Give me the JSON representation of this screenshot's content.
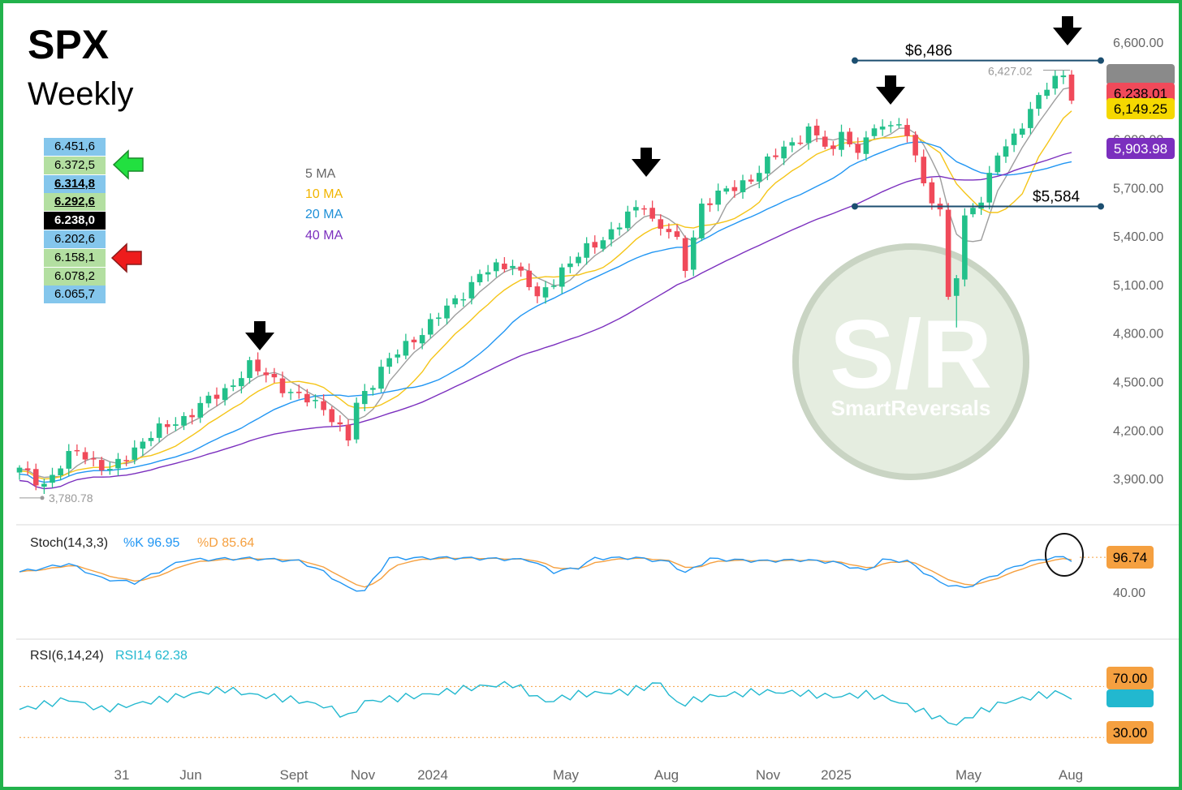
{
  "header": {
    "title": "SPX",
    "subtitle": "Weekly"
  },
  "levels": [
    {
      "label": "6.451,6",
      "color": "#84c6ec",
      "bold": false,
      "underline": false
    },
    {
      "label": "6.372,5",
      "color": "#b3dfa1",
      "bold": false,
      "underline": false
    },
    {
      "label": "6.314,8",
      "color": "#84c6ec",
      "bold": true,
      "underline": true
    },
    {
      "label": "6.292,6",
      "color": "#b3dfa1",
      "bold": true,
      "underline": true
    },
    {
      "label": "6.238,0",
      "color": "#000000",
      "bold": true,
      "underline": false
    },
    {
      "label": "6.202,6",
      "color": "#84c6ec",
      "bold": false,
      "underline": false
    },
    {
      "label": "6.158,1",
      "color": "#b3dfa1",
      "bold": false,
      "underline": false
    },
    {
      "label": "6.078,2",
      "color": "#b3dfa1",
      "bold": false,
      "underline": false
    },
    {
      "label": "6.065,7",
      "color": "#84c6ec",
      "bold": false,
      "underline": false
    }
  ],
  "legend": {
    "ma5": "5 MA",
    "ma10": "10 MA",
    "ma20": "20 MA",
    "ma40": "40 MA",
    "colors": {
      "ma5": "#9e9e9e",
      "ma10": "#f5c518",
      "ma20": "#2196f3",
      "ma40": "#7b2fbe"
    }
  },
  "annotations": {
    "resistance": "$6,486",
    "support": "$5,584",
    "high": "6,427.02",
    "low": "3,780.78",
    "watermark_main": "S/R",
    "watermark_sub": "SmartReversals"
  },
  "price_badges": [
    {
      "label": "",
      "value": 6427.02,
      "bg": "#8a8a8a",
      "fg": "#ffffff"
    },
    {
      "label": "6,238.01",
      "value": 6238.01,
      "bg": "#f04a5a",
      "fg": "#000000"
    },
    {
      "label": "6,149.25",
      "value": 6149.25,
      "bg": "#f5d800",
      "fg": "#000000"
    },
    {
      "label": "5,903.98",
      "value": 5903.98,
      "bg": "#7b2fbe",
      "fg": "#ffffff"
    }
  ],
  "stoch": {
    "title": "Stoch(14,3,3)",
    "k_label": "%K 96.95",
    "d_label": "%D 85.64",
    "badge": "96.74",
    "tick": "40.00"
  },
  "rsi": {
    "title": "RSI(6,14,24)",
    "rsi_label": "RSI14 62.38",
    "badge_high": "70.00",
    "badge_low": "30.00"
  },
  "chart_data": {
    "type": "candlestick",
    "title": "SPX",
    "subtitle": "Weekly",
    "y_ticks": [
      6600,
      6300,
      6000,
      5700,
      5400,
      5100,
      4800,
      4500,
      4200,
      3900
    ],
    "y_tick_labels": [
      "6,600.00",
      "",
      "6,000.00",
      "5,700.00",
      "5,400.00",
      "5,100.00",
      "4,800.00",
      "4,500.00",
      "4,200.00",
      "3,900.00"
    ],
    "ylim": [
      3700,
      6660
    ],
    "x_labels": [
      "31",
      "Jun",
      "Sept",
      "Nov",
      "2024",
      "May",
      "Aug",
      "Nov",
      "2025",
      "May",
      "Aug"
    ],
    "close_waypoints": [
      [
        0,
        3950
      ],
      [
        3,
        3870
      ],
      [
        7,
        4080
      ],
      [
        11,
        3940
      ],
      [
        15,
        4140
      ],
      [
        20,
        4280
      ],
      [
        25,
        4450
      ],
      [
        28,
        4590
      ],
      [
        31,
        4520
      ],
      [
        33,
        4420
      ],
      [
        37,
        4350
      ],
      [
        39,
        4200
      ],
      [
        40,
        4140
      ],
      [
        41,
        4360
      ],
      [
        44,
        4580
      ],
      [
        48,
        4770
      ],
      [
        52,
        4950
      ],
      [
        56,
        5160
      ],
      [
        60,
        5240
      ],
      [
        62,
        5100
      ],
      [
        63,
        5000
      ],
      [
        66,
        5200
      ],
      [
        70,
        5350
      ],
      [
        74,
        5520
      ],
      [
        76,
        5600
      ],
      [
        77,
        5500
      ],
      [
        79,
        5430
      ],
      [
        80,
        5350
      ],
      [
        81,
        5200
      ],
      [
        83,
        5600
      ],
      [
        87,
        5700
      ],
      [
        90,
        5800
      ],
      [
        93,
        5950
      ],
      [
        96,
        6050
      ],
      [
        99,
        5920
      ],
      [
        100,
        6080
      ],
      [
        102,
        5880
      ],
      [
        103,
        6020
      ],
      [
        105,
        6080
      ],
      [
        106,
        6130
      ],
      [
        108,
        6010
      ],
      [
        109,
        5900
      ],
      [
        110,
        5700
      ],
      [
        112,
        5580
      ],
      [
        113,
        5000
      ],
      [
        114,
        5150
      ],
      [
        115,
        5500
      ],
      [
        117,
        5650
      ],
      [
        119,
        5900
      ],
      [
        121,
        6000
      ],
      [
        123,
        6200
      ],
      [
        125,
        6320
      ],
      [
        127,
        6390
      ],
      [
        128,
        6238
      ]
    ],
    "resistance": 6486,
    "support": 5584,
    "high": 6427.02,
    "low": 3780.78,
    "stoch_k": 96.95,
    "stoch_d": 85.64,
    "stoch_last": 96.74,
    "rsi14": 62.38,
    "rsi_bounds": [
      30,
      70
    ],
    "grid": false
  }
}
